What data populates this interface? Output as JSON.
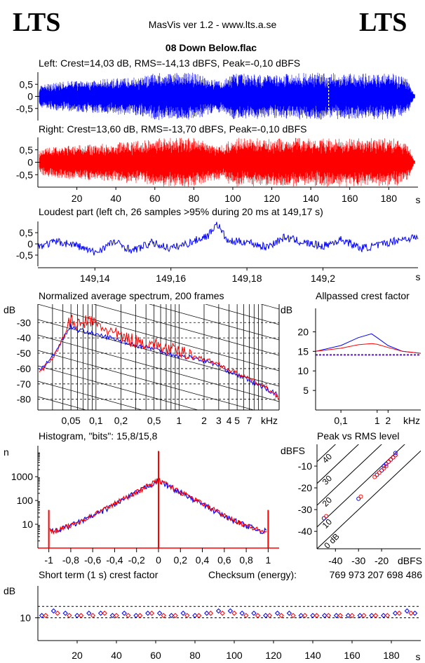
{
  "header": {
    "logo_left": "LTS",
    "logo_right": "LTS",
    "app_title": "MasVis ver 1.2 - www.lts.a.se",
    "file_name": "08 Down Below.flac"
  },
  "colors": {
    "left": "#0000ff",
    "right": "#ff0000",
    "axis": "#000000"
  },
  "chart_data": [
    {
      "id": "left-waveform",
      "type": "area",
      "title": "Left: Crest=14,03 dB, RMS=-14,13 dBFS, Peak=-0,10 dBFS",
      "y_ticks": [
        "0,5",
        "0",
        "-0,5"
      ],
      "ylim": [
        -1,
        1
      ],
      "xlim": [
        0,
        195
      ],
      "envelope_x": [
        0,
        10,
        20,
        30,
        40,
        50,
        55,
        60,
        80,
        90,
        95,
        100,
        110,
        120,
        130,
        140,
        150,
        160,
        170,
        180,
        185,
        190,
        193
      ],
      "envelope_peak": [
        0.45,
        0.6,
        0.65,
        0.7,
        0.75,
        0.8,
        0.85,
        0.98,
        0.98,
        0.7,
        0.65,
        0.95,
        0.95,
        0.9,
        0.95,
        0.98,
        0.98,
        0.95,
        0.95,
        0.98,
        0.9,
        0.7,
        0.1
      ],
      "marker_s": 149.17
    },
    {
      "id": "right-waveform",
      "type": "area",
      "title": "Right: Crest=13,60 dB, RMS=-13,70 dBFS, Peak=-0,10 dBFS",
      "y_ticks": [
        "0,5",
        "0",
        "-0,5"
      ],
      "ylim": [
        -1,
        1
      ],
      "xlim": [
        0,
        195
      ],
      "x_ticks": [
        "20",
        "40",
        "60",
        "80",
        "100",
        "120",
        "140",
        "160",
        "180"
      ],
      "x_unit": "s",
      "envelope_x": [
        0,
        10,
        20,
        30,
        40,
        50,
        55,
        60,
        80,
        90,
        95,
        100,
        110,
        120,
        130,
        140,
        150,
        160,
        170,
        180,
        185,
        190,
        193
      ],
      "envelope_peak": [
        0.5,
        0.65,
        0.7,
        0.75,
        0.8,
        0.85,
        0.9,
        0.98,
        0.98,
        0.75,
        0.7,
        0.98,
        0.98,
        0.95,
        0.98,
        0.98,
        0.98,
        0.98,
        0.98,
        0.98,
        0.95,
        0.75,
        0.1
      ]
    },
    {
      "id": "loudest-part",
      "type": "line",
      "title": "Loudest part (left  ch, 26 samples >95% during 20 ms at 149,17 s)",
      "y_ticks": [
        "0,5",
        "0",
        "-0,5"
      ],
      "ylim": [
        -1,
        1
      ],
      "xlim": [
        149.125,
        149.225
      ],
      "x_ticks": [
        "149,14",
        "149,16",
        "149,18",
        "149,2"
      ],
      "x_tick_values": [
        149.14,
        149.16,
        149.18,
        149.2
      ],
      "x_unit": "s",
      "x": [
        149.125,
        149.13,
        149.135,
        149.14,
        149.145,
        149.15,
        149.155,
        149.16,
        149.165,
        149.17,
        149.172,
        149.175,
        149.18,
        149.185,
        149.19,
        149.195,
        149.2,
        149.205,
        149.21,
        149.215,
        149.22,
        149.225
      ],
      "y": [
        -0.1,
        0.1,
        -0.05,
        -0.4,
        0.1,
        -0.3,
        0.05,
        -0.2,
        0.05,
        0.4,
        0.95,
        0.1,
        0.1,
        -0.15,
        0.3,
        0.05,
        -0.1,
        0.2,
        -0.2,
        -0.05,
        0.2,
        0.3
      ]
    },
    {
      "id": "average-spectrum",
      "type": "line",
      "title": "Normalized average spectrum, 200 frames",
      "ylabel": "dB",
      "y_ticks": [
        "-30",
        "-40",
        "-50",
        "-60",
        "-70",
        "-80"
      ],
      "y_tick_values": [
        -30,
        -40,
        -50,
        -60,
        -70,
        -80
      ],
      "ylim": [
        -87,
        -18
      ],
      "x_ticks": [
        "0,05",
        "0,1",
        "0,2",
        "0,5",
        "1",
        "2",
        "3",
        "4",
        "5",
        "7"
      ],
      "x_tick_values": [
        0.05,
        0.1,
        0.2,
        0.5,
        1,
        2,
        3,
        4,
        5,
        7
      ],
      "x_unit": "kHz",
      "xlim": [
        0.02,
        16
      ],
      "series": [
        {
          "name": "left",
          "x": [
            0.02,
            0.03,
            0.04,
            0.05,
            0.06,
            0.08,
            0.1,
            0.15,
            0.2,
            0.3,
            0.5,
            0.7,
            1,
            1.5,
            2,
            3,
            4,
            5,
            7,
            10,
            16
          ],
          "y": [
            -62,
            -52,
            -40,
            -32,
            -35,
            -36,
            -38,
            -40,
            -42,
            -45,
            -47,
            -50,
            -52,
            -53,
            -55,
            -58,
            -62,
            -64,
            -68,
            -72,
            -78
          ]
        },
        {
          "name": "right",
          "x": [
            0.02,
            0.03,
            0.04,
            0.05,
            0.06,
            0.08,
            0.1,
            0.15,
            0.2,
            0.3,
            0.5,
            0.7,
            1,
            1.5,
            2,
            3,
            4,
            5,
            7,
            10,
            16
          ],
          "y": [
            -63,
            -53,
            -40,
            -30,
            -34,
            -30,
            -33,
            -38,
            -41,
            -44,
            -46,
            -49,
            -51,
            -52,
            -54,
            -57,
            -61,
            -63,
            -67,
            -71,
            -79
          ]
        }
      ]
    },
    {
      "id": "allpassed-crest",
      "type": "line",
      "title": "Allpassed crest factor",
      "ylabel": "dB",
      "y_ticks": [
        "20",
        "15",
        "10",
        "5"
      ],
      "y_tick_values": [
        20,
        15,
        10,
        5
      ],
      "ylim": [
        0,
        26
      ],
      "x_ticks": [
        "0,1",
        "1",
        "2"
      ],
      "x_tick_values": [
        0.1,
        1,
        2
      ],
      "x_unit": "kHz",
      "xlim": [
        0.02,
        16
      ],
      "series": [
        {
          "name": "left",
          "x": [
            0.02,
            0.1,
            0.3,
            0.7,
            1,
            2,
            5,
            16
          ],
          "y": [
            15,
            16.5,
            18.5,
            19.5,
            18.5,
            16.5,
            15,
            14.5
          ]
        },
        {
          "name": "right",
          "x": [
            0.02,
            0.1,
            0.3,
            0.7,
            1,
            2,
            5,
            16
          ],
          "y": [
            15,
            15.8,
            16.7,
            17,
            16.8,
            16,
            15,
            14.5
          ]
        }
      ],
      "ref_lines": [
        14.0,
        14.2
      ]
    },
    {
      "id": "histogram",
      "type": "line",
      "title": "Histogram, \"bits\": 15,8/15,8",
      "ylabel": "n",
      "y_ticks": [
        "1000",
        "100",
        "10"
      ],
      "y_tick_values": [
        1000,
        100,
        10
      ],
      "ylim": [
        1,
        20000
      ],
      "x_ticks": [
        "-1",
        "-0,8",
        "-0,6",
        "-0,4",
        "-0,2",
        "0",
        "0,2",
        "0,4",
        "0,6",
        "0,8",
        "1"
      ],
      "x_tick_values": [
        -1,
        -0.8,
        -0.6,
        -0.4,
        -0.2,
        0,
        0.2,
        0.4,
        0.6,
        0.8,
        1
      ],
      "xlim": [
        -1.1,
        1.1
      ],
      "series": [
        {
          "name": "left",
          "x": [
            -1,
            -0.95,
            -0.8,
            -0.6,
            -0.4,
            -0.2,
            0,
            0.2,
            0.4,
            0.6,
            0.8,
            0.95,
            1
          ],
          "y": [
            6,
            5,
            9,
            22,
            70,
            220,
            700,
            220,
            70,
            22,
            9,
            5,
            6
          ]
        },
        {
          "name": "right",
          "x": [
            -1,
            -0.95,
            -0.8,
            -0.6,
            -0.4,
            -0.2,
            0,
            0.2,
            0.4,
            0.6,
            0.8,
            0.95,
            1
          ],
          "y": [
            5,
            5,
            9,
            24,
            75,
            230,
            720,
            230,
            75,
            24,
            9,
            5,
            5
          ]
        }
      ],
      "spikes": [
        {
          "x": -1,
          "y": 40
        },
        {
          "x": 0,
          "y": 12000
        },
        {
          "x": 1,
          "y": 40
        }
      ]
    },
    {
      "id": "peak-vs-rms",
      "type": "scatter",
      "title": "Peak vs RMS level",
      "ylabel": "dBFS",
      "y_ticks": [
        "-10",
        "-20",
        "-30",
        "-40"
      ],
      "y_tick_values": [
        -10,
        -20,
        -30,
        -40
      ],
      "ylim": [
        -48,
        0
      ],
      "x_ticks": [
        "-40",
        "-30",
        "-20"
      ],
      "x_tick_values": [
        -40,
        -30,
        -20
      ],
      "xlabel": "dBFS",
      "xlim": [
        -48,
        -3
      ],
      "diagonals": [
        "40",
        "30",
        "20",
        "10",
        "0 dB"
      ],
      "diagonal_values": [
        40,
        30,
        20,
        10,
        0
      ],
      "series": [
        {
          "name": "left",
          "x": [
            -45,
            -30,
            -22,
            -20,
            -19,
            -18,
            -17,
            -16,
            -15,
            -14,
            -14
          ],
          "y": [
            -34,
            -25,
            -14,
            -12,
            -10,
            -9,
            -8,
            -7,
            -6,
            -5,
            -4
          ]
        },
        {
          "name": "right",
          "x": [
            -44,
            -29,
            -23,
            -21,
            -19,
            -18,
            -17,
            -16,
            -15,
            -14
          ],
          "y": [
            -33,
            -24,
            -15,
            -13,
            -11,
            -10,
            -8,
            -7,
            -6,
            -5
          ]
        }
      ]
    },
    {
      "id": "short-term-crest",
      "type": "scatter",
      "title": "Short term (1 s) crest factor",
      "checksum_label": "Checksum (energy):",
      "checksum_value": "769 973 207 698 486",
      "ylabel": "dB",
      "y_ticks": [
        "10"
      ],
      "y_tick_values": [
        10
      ],
      "ylim": [
        0,
        24
      ],
      "x_ticks": [
        "20",
        "40",
        "60",
        "80",
        "100",
        "120",
        "140",
        "160",
        "180"
      ],
      "x_tick_values": [
        20,
        40,
        60,
        80,
        100,
        120,
        140,
        160,
        180
      ],
      "x_unit": "s",
      "xlim": [
        0,
        195
      ],
      "ref_lines": [
        10,
        15
      ],
      "series": [
        {
          "name": "left",
          "x": [
            2,
            8,
            14,
            20,
            26,
            32,
            38,
            44,
            50,
            56,
            62,
            68,
            74,
            80,
            86,
            92,
            98,
            104,
            110,
            116,
            122,
            128,
            134,
            140,
            146,
            152,
            158,
            164,
            170,
            176,
            182,
            188,
            192
          ],
          "y": [
            11,
            13,
            12,
            11,
            12,
            12,
            11,
            12,
            11,
            12,
            12,
            11,
            12,
            11,
            12,
            13,
            13,
            12,
            12,
            11,
            12,
            12,
            11,
            11,
            11,
            11,
            11,
            11,
            11,
            11,
            12,
            13,
            12
          ]
        },
        {
          "name": "right",
          "x": [
            4,
            10,
            16,
            22,
            28,
            34,
            40,
            46,
            52,
            58,
            64,
            70,
            76,
            82,
            88,
            94,
            100,
            106,
            112,
            118,
            124,
            130,
            136,
            142,
            148,
            154,
            160,
            166,
            172,
            178,
            184,
            190
          ],
          "y": [
            11,
            12,
            11,
            11,
            11,
            12,
            11,
            11,
            11,
            12,
            11,
            11,
            11,
            11,
            12,
            12,
            12,
            11,
            11,
            11,
            11,
            11,
            11,
            11,
            11,
            11,
            11,
            11,
            11,
            11,
            12,
            12
          ]
        }
      ]
    }
  ]
}
